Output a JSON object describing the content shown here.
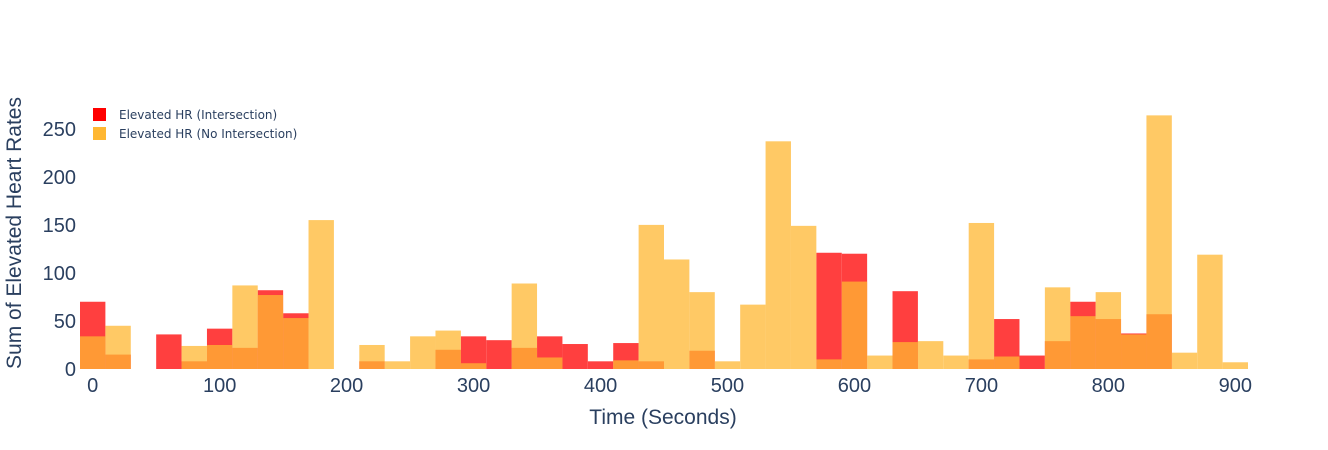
{
  "chart_data": {
    "type": "bar",
    "barmode": "overlay",
    "xlabel": "Time (Seconds)",
    "ylabel": "Sum of Elevated Heart Rates",
    "xlim": [
      -10,
      910
    ],
    "ylim": [
      0,
      280
    ],
    "xticks": [
      0,
      100,
      200,
      300,
      400,
      500,
      600,
      700,
      800,
      900
    ],
    "yticks": [
      0,
      50,
      100,
      150,
      200,
      250
    ],
    "bin_width": 20,
    "grid": false,
    "legend_position": "top-left",
    "series": [
      {
        "name": "Elevated HR (Intersection)",
        "color": "#ff0000",
        "x": [
          0,
          20,
          60,
          80,
          100,
          120,
          140,
          160,
          220,
          280,
          300,
          320,
          340,
          360,
          380,
          400,
          420,
          440,
          480,
          580,
          600,
          640,
          700,
          720,
          740,
          760,
          780,
          800,
          820,
          840
        ],
        "values": [
          70,
          15,
          36,
          8,
          42,
          22,
          82,
          58,
          8,
          20,
          34,
          30,
          22,
          34,
          26,
          8,
          27,
          8,
          19,
          121,
          120,
          81,
          10,
          52,
          14,
          29,
          70,
          52,
          37,
          57
        ]
      },
      {
        "name": "Elevated HR (No Intersection)",
        "color": "#ffb732",
        "x": [
          0,
          20,
          80,
          100,
          120,
          140,
          160,
          180,
          220,
          240,
          260,
          280,
          300,
          340,
          360,
          420,
          440,
          460,
          480,
          500,
          520,
          540,
          560,
          580,
          600,
          620,
          640,
          660,
          680,
          700,
          720,
          760,
          780,
          800,
          820,
          840,
          860,
          880,
          900
        ],
        "values": [
          34,
          45,
          24,
          25,
          87,
          77,
          53,
          155,
          25,
          8,
          34,
          40,
          6,
          89,
          12,
          9,
          150,
          114,
          80,
          8,
          67,
          237,
          149,
          10,
          91,
          14,
          28,
          29,
          14,
          152,
          13,
          85,
          55,
          80,
          36,
          264,
          17,
          119,
          7
        ]
      }
    ]
  }
}
